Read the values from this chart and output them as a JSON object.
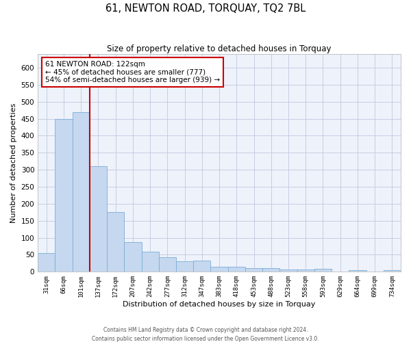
{
  "title": "61, NEWTON ROAD, TORQUAY, TQ2 7BL",
  "subtitle": "Size of property relative to detached houses in Torquay",
  "xlabel": "Distribution of detached houses by size in Torquay",
  "ylabel": "Number of detached properties",
  "bar_color": "#c5d8f0",
  "bar_edge_color": "#7aadd4",
  "background_color": "#eef2fb",
  "grid_color": "#c0c8dc",
  "categories": [
    "31sqm",
    "66sqm",
    "101sqm",
    "137sqm",
    "172sqm",
    "207sqm",
    "242sqm",
    "277sqm",
    "312sqm",
    "347sqm",
    "383sqm",
    "418sqm",
    "453sqm",
    "488sqm",
    "523sqm",
    "558sqm",
    "593sqm",
    "629sqm",
    "664sqm",
    "699sqm",
    "734sqm"
  ],
  "values": [
    54,
    450,
    470,
    310,
    175,
    88,
    58,
    43,
    30,
    32,
    15,
    15,
    10,
    10,
    7,
    7,
    9,
    0,
    5,
    0,
    5
  ],
  "ylim": [
    0,
    640
  ],
  "yticks": [
    0,
    50,
    100,
    150,
    200,
    250,
    300,
    350,
    400,
    450,
    500,
    550,
    600
  ],
  "property_line_x": 2.5,
  "annotation_title": "61 NEWTON ROAD: 122sqm",
  "annotation_line1": "← 45% of detached houses are smaller (777)",
  "annotation_line2": "54% of semi-detached houses are larger (939) →",
  "annotation_box_color": "#ffffff",
  "annotation_box_edge": "#cc0000",
  "vline_color": "#cc0000",
  "footer1": "Contains HM Land Registry data © Crown copyright and database right 2024.",
  "footer2": "Contains public sector information licensed under the Open Government Licence v3.0."
}
